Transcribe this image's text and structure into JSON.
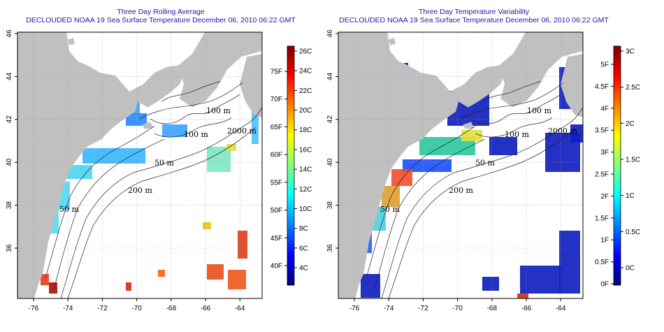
{
  "panels": [
    {
      "title": "Three Day Rolling Average",
      "subtitle": "DECLOUDED NOAA 19 Sea Surface Temperature December 06, 2010 06:22 GMT",
      "colorbar_left": [
        "26C",
        "24C",
        "22C",
        "20C",
        "18C",
        "16C",
        "14C",
        "12C",
        "10C",
        "8C",
        "6C",
        "4C"
      ],
      "colorbar_right": [
        "75F",
        "70F",
        "65F",
        "60F",
        "55F",
        "50F",
        "45F",
        "40F"
      ],
      "gradient": [
        "#00007f",
        "#0000ff",
        "#007fff",
        "#00ffff",
        "#7fff7f",
        "#ffff00",
        "#ff7f00",
        "#ff0000",
        "#7f0000"
      ]
    },
    {
      "title": "Three Day Temperature Variability",
      "subtitle": "DECLOUDED NOAA 19 Sea Surface Temperature December 06, 2010 06:22 GMT",
      "colorbar_left": [
        "3C",
        "2.5C",
        "2C",
        "1.5C",
        "1C",
        "0.5C",
        "0C"
      ],
      "colorbar_right": [
        "5F",
        "4.5F",
        "4F",
        "3.5F",
        "3F",
        "2.5F",
        "2F",
        "1.5F",
        "1F",
        "0.5F",
        "0F"
      ],
      "gradient": [
        "#00007f",
        "#0000ff",
        "#007fff",
        "#00ffff",
        "#7fff7f",
        "#ffff00",
        "#ff7f00",
        "#ff0000",
        "#7f0000"
      ]
    }
  ],
  "axes": {
    "lon_ticks": [
      "-76",
      "-74",
      "-72",
      "-70",
      "-68",
      "-66",
      "-64"
    ],
    "lat_ticks": [
      "46",
      "44",
      "42",
      "40",
      "38",
      "36"
    ]
  },
  "isobath_labels": [
    "100 m",
    "100 m",
    "2000 m",
    "50 m",
    "200 m",
    "50 m"
  ],
  "colors": {
    "land": "#c0c0c0",
    "title": "#1a1aa6"
  }
}
